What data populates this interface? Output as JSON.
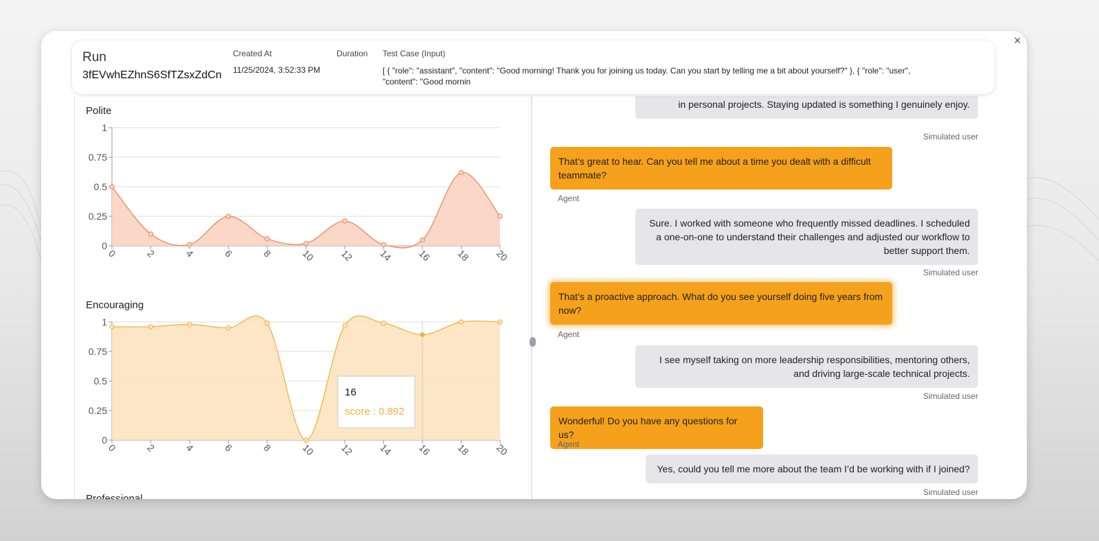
{
  "header": {
    "run_label": "Run",
    "run_id": "3fEVwhEZhnS6SfTZsxZdCn",
    "created_at_label": "Created At",
    "created_at": "11/25/2024, 3:52:33 PM",
    "duration_label": "Duration",
    "test_case_label": "Test Case (Input)",
    "test_case": "[ { \"role\": \"assistant\", \"content\": \"Good morning! Thank you for joining us today. Can you start by telling me a bit about yourself?\" }, { \"role\": \"user\", \"content\": \"Good mornin"
  },
  "close_icon": "×",
  "charts": [
    {
      "type": "area",
      "title": "Polite",
      "x": [
        0,
        2,
        4,
        6,
        8,
        10,
        12,
        14,
        16,
        18,
        20
      ],
      "values": [
        0.5,
        0.1,
        0.01,
        0.25,
        0.06,
        0.02,
        0.21,
        0.01,
        0.05,
        0.62,
        0.25
      ],
      "color": "#e8895c",
      "fill": "#fbd3c2",
      "xlim": [
        0,
        20
      ],
      "xticks": [
        0,
        2,
        4,
        6,
        8,
        10,
        12,
        14,
        16,
        18,
        20
      ],
      "ylim": [
        0,
        1
      ],
      "yticks": [
        0,
        0.25,
        0.5,
        0.75,
        1
      ],
      "grid": true
    },
    {
      "type": "area",
      "title": "Encouraging",
      "x": [
        0,
        2,
        4,
        6,
        8,
        10,
        12,
        14,
        16,
        18,
        20
      ],
      "values": [
        0.96,
        0.96,
        0.98,
        0.95,
        0.99,
        0,
        0.97,
        0.99,
        0.892,
        1,
        1
      ],
      "color": "#f0b23e",
      "fill": "#fce3bf",
      "xlim": [
        0,
        20
      ],
      "xticks": [
        0,
        2,
        4,
        6,
        8,
        10,
        12,
        14,
        16,
        18,
        20
      ],
      "ylim": [
        0,
        1
      ],
      "yticks": [
        0,
        0.25,
        0.5,
        0.75,
        1
      ],
      "grid": true,
      "tooltip": {
        "title": "16",
        "text": "score : 0.892"
      }
    }
  ],
  "next_chart_title": "Professional",
  "messages": [
    {
      "role": "user",
      "text": "in personal projects. Staying updated is something I genuinely enjoy.",
      "sender": "Simulated user"
    },
    {
      "role": "agent",
      "text": "That’s great to hear. Can you tell me about a time you dealt with a difficult teammate?",
      "sender": "Agent"
    },
    {
      "role": "user",
      "text": "Sure. I worked with someone who frequently missed deadlines. I scheduled a one-on-one to understand their challenges and adjusted our workflow to better support them.",
      "sender": "Simulated user"
    },
    {
      "role": "agent",
      "text": "That’s a proactive approach. What do you see yourself doing five years from now?",
      "sender": "Agent"
    },
    {
      "role": "user",
      "text": "I see myself taking on more leadership responsibilities, mentoring others, and driving large-scale technical projects.",
      "sender": "Simulated user"
    },
    {
      "role": "agent",
      "text": "Wonderful! Do you have any questions for us?",
      "sender": "Agent"
    },
    {
      "role": "user",
      "text": "Yes, could you tell me more about the team I’d be working with if I joined?",
      "sender": "Simulated user"
    }
  ]
}
